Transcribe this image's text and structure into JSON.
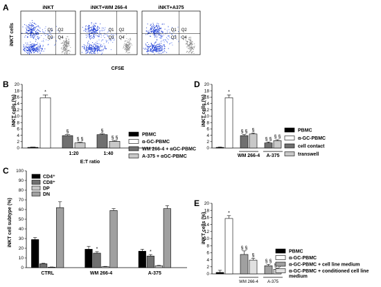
{
  "flow_panel": {
    "label": "A",
    "y_axis_label": "iNKT cells",
    "x_axis_label": "CFSE",
    "plots": [
      {
        "title": "iNKT",
        "quadrants": [
          "Q1",
          "Q2",
          "Q3",
          "Q4"
        ]
      },
      {
        "title": "iNKT+WM 266-4",
        "quadrants": [
          "Q1",
          "Q2",
          "Q3",
          "Q4"
        ]
      },
      {
        "title": "iNKT+A375",
        "quadrants": [
          "Q1",
          "Q2",
          "Q3",
          "Q4"
        ]
      }
    ]
  },
  "chart_data": [
    {
      "panel": "B",
      "type": "bar",
      "ylabel": "iNKT cells (%)",
      "xlabel": "E:T ratio",
      "ylim": [
        0,
        20
      ],
      "yticks": [
        0,
        2,
        4,
        6,
        8,
        10,
        12,
        14,
        16,
        18,
        20
      ],
      "groups": [
        {
          "label": "",
          "bars": [
            {
              "series": "PBMC",
              "value": 0.2,
              "err": 0.1,
              "sig": ""
            },
            {
              "series": "α-GC-PBMC",
              "value": 15.8,
              "err": 0.9,
              "sig": "*"
            }
          ]
        },
        {
          "label": "1:20",
          "bars": [
            {
              "series": "WM 266-4 + αGC-PBMC",
              "value": 3.9,
              "err": 0.3,
              "sig": "§"
            },
            {
              "series": "A-375 + αGC-PBMC",
              "value": 1.6,
              "err": 0.2,
              "sig": "§ §"
            }
          ]
        },
        {
          "label": "1:40",
          "bars": [
            {
              "series": "WM 266-4 + αGC-PBMC",
              "value": 4.2,
              "err": 0.3,
              "sig": "§"
            },
            {
              "series": "A-375 + αGC-PBMC",
              "value": 2.1,
              "err": 0.2,
              "sig": "§ §"
            }
          ]
        }
      ],
      "legend": [
        {
          "name": "PBMC",
          "color": "#000000"
        },
        {
          "name": "α-GC-PBMC",
          "color": "#ffffff"
        },
        {
          "name": "WM 266-4 + αGC-PBMC",
          "color": "#707070"
        },
        {
          "name": "A-375 + αGC-PBMC",
          "color": "#c8c8c8"
        }
      ]
    },
    {
      "panel": "C",
      "type": "bar",
      "ylabel": "iNKT cell subtype (%)",
      "ylim": [
        0,
        100
      ],
      "yticks": [
        0,
        10,
        20,
        30,
        40,
        50,
        60,
        70,
        80,
        90,
        100
      ],
      "categories": [
        "CTRL",
        "WM 266-4",
        "A-375"
      ],
      "series": [
        {
          "name": "CD4⁺",
          "color": "#000000",
          "values": [
            29,
            19,
            17
          ],
          "err": [
            2,
            3,
            2
          ]
        },
        {
          "name": "CD8⁺",
          "color": "#707070",
          "values": [
            4,
            15,
            12
          ],
          "err": [
            0.5,
            1.5,
            1.5
          ]
        },
        {
          "name": "DP",
          "color": "#c8c8c8",
          "values": [
            0.5,
            1,
            2
          ],
          "err": [
            0.2,
            0.3,
            0.4
          ]
        },
        {
          "name": "DN",
          "color": "#a0a0a0",
          "values": [
            62,
            59,
            61
          ],
          "err": [
            6,
            2,
            3
          ]
        }
      ],
      "sig": [
        {
          "category": "WM 266-4",
          "series": "CD8⁺",
          "mark": "*"
        },
        {
          "category": "A-375",
          "series": "CD8⁺",
          "mark": "*"
        }
      ]
    },
    {
      "panel": "D",
      "type": "bar",
      "ylabel": "iNKT cells (%)",
      "ylim": [
        0,
        20
      ],
      "yticks": [
        0,
        2,
        4,
        6,
        8,
        10,
        12,
        14,
        16,
        18,
        20
      ],
      "groups": [
        {
          "label": "",
          "bars": [
            {
              "series": "PBMC",
              "value": 0.2,
              "err": 0.1,
              "sig": ""
            },
            {
              "series": "α-GC-PBMC",
              "value": 15.8,
              "err": 0.9,
              "sig": "*"
            }
          ]
        },
        {
          "label": "WM 266-4",
          "bars": [
            {
              "series": "cell contact",
              "value": 3.9,
              "err": 0.3,
              "sig": "§ §"
            },
            {
              "series": "transwell",
              "value": 4.4,
              "err": 0.3,
              "sig": "§"
            }
          ]
        },
        {
          "label": "A-375",
          "bars": [
            {
              "series": "cell contact",
              "value": 1.6,
              "err": 0.3,
              "sig": "§ §"
            },
            {
              "series": "transwell",
              "value": 2.3,
              "err": 0.3,
              "sig": "§ §"
            }
          ]
        }
      ],
      "legend": [
        {
          "name": "PBMC",
          "color": "#000000"
        },
        {
          "name": "α-GC-PBMC",
          "color": "#ffffff"
        },
        {
          "name": "cell contact",
          "color": "#707070"
        },
        {
          "name": "transwell",
          "color": "#c8c8c8"
        }
      ]
    },
    {
      "panel": "E",
      "type": "bar",
      "ylabel": "iNKT cells (%)",
      "ylim": [
        0,
        20
      ],
      "yticks": [
        0,
        2,
        4,
        6,
        8,
        10,
        12,
        14,
        16,
        18,
        20
      ],
      "groups": [
        {
          "label": "",
          "bars": [
            {
              "series": "PBMC",
              "value": 0.4,
              "err": 0.6,
              "sig": ""
            },
            {
              "series": "α-GC-PBMC",
              "value": 15.7,
              "err": 0.8,
              "sig": "*"
            }
          ]
        },
        {
          "label": "WM 266-4",
          "bars": [
            {
              "series": "α-GC-PBMC + cell line medium",
              "value": 5.5,
              "err": 1.0,
              "sig": "§ §"
            },
            {
              "series": "α-GC-PBMC + conditioned cell line medium",
              "value": 3.9,
              "err": 0.5,
              "sig": "§"
            }
          ]
        },
        {
          "label": "A-375",
          "bars": [
            {
              "series": "α-GC-PBMC + cell line medium",
              "value": 2.3,
              "err": 0.4,
              "sig": "§ §"
            },
            {
              "series": "α-GC-PBMC + conditioned cell line medium",
              "value": 1.3,
              "err": 0.3,
              "sig": "§ §"
            }
          ]
        }
      ],
      "legend": [
        {
          "name": "PBMC",
          "color": "#000000"
        },
        {
          "name": "α-GC-PBMC",
          "color": "#ffffff"
        },
        {
          "name": "α-GC-PBMC + cell line medium",
          "color": "#a0a0a0"
        },
        {
          "name": "α-GC-PBMC + conditioned cell line medium",
          "color": "#e0e0e0"
        }
      ]
    }
  ]
}
